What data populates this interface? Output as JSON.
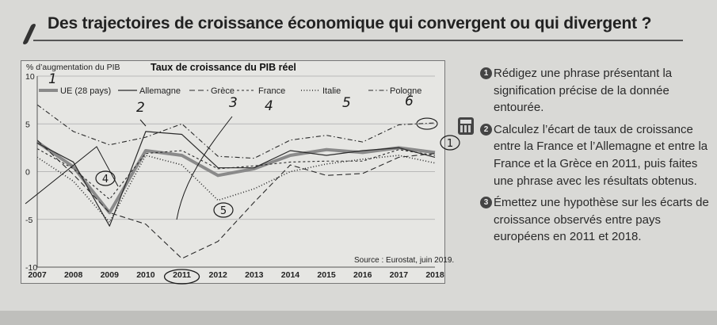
{
  "page": {
    "title": "Des trajectoires de croissance économique qui convergent ou qui divergent ?"
  },
  "questions": [
    {
      "num": "1",
      "text": "Rédigez une phrase présentant la signification précise de la donnée entourée."
    },
    {
      "num": "2",
      "text": "Calculez l’écart de taux de croissance entre la France et l’Allemagne et entre la France et la Grèce en 2011, puis faites une phrase avec les résultats obtenus."
    },
    {
      "num": "3",
      "text": "Émettez une hypothèse sur les écarts de croissance observés entre pays européens en 2011 et 2018."
    }
  ],
  "icons": {
    "calculator": "calculator-icon"
  },
  "handwriting": {
    "legend_numbers": [
      "1",
      "2",
      "3",
      "4",
      "5",
      "6"
    ],
    "circled_labels": [
      "1",
      "4",
      "5"
    ],
    "color": "#1a1a1a"
  },
  "chart_data": {
    "type": "line",
    "title": "Taux de croissance du PIB réel",
    "ylabel": "% d’augmentation du PIB",
    "source": "Source : Eurostat, juin 2019.",
    "x": [
      2007,
      2008,
      2009,
      2010,
      2011,
      2012,
      2013,
      2014,
      2015,
      2016,
      2017,
      2018
    ],
    "ylim": [
      -10,
      10
    ],
    "yticks": [
      -10,
      -5,
      0,
      5,
      10
    ],
    "grid": true,
    "legend_position": "top",
    "highlighted_x": 2011,
    "series": [
      {
        "name": "UE (28 pays)",
        "style": "thick-gray",
        "color": "#8a8a8a",
        "values": [
          3.1,
          0.5,
          -4.3,
          2.2,
          1.7,
          -0.4,
          0.3,
          1.7,
          2.3,
          2.0,
          2.5,
          2.0
        ]
      },
      {
        "name": "Allemagne",
        "style": "solid",
        "color": "#2b2b2b",
        "values": [
          3.0,
          1.0,
          -5.7,
          4.2,
          3.9,
          0.4,
          0.4,
          2.2,
          1.7,
          2.2,
          2.5,
          1.5
        ]
      },
      {
        "name": "Grèce",
        "style": "long-dash",
        "color": "#2b2b2b",
        "values": [
          3.3,
          -0.3,
          -4.3,
          -5.5,
          -9.1,
          -7.3,
          -3.2,
          0.7,
          -0.4,
          -0.2,
          1.5,
          1.9
        ]
      },
      {
        "name": "France",
        "style": "short-dash",
        "color": "#2b2b2b",
        "values": [
          2.4,
          0.3,
          -2.9,
          1.9,
          2.2,
          0.3,
          0.6,
          1.0,
          1.1,
          1.1,
          2.3,
          1.7
        ]
      },
      {
        "name": "Italie",
        "style": "dotted",
        "color": "#2b2b2b",
        "values": [
          1.5,
          -1.0,
          -5.3,
          1.7,
          0.7,
          -3.0,
          -1.8,
          0.0,
          0.8,
          1.3,
          1.7,
          0.9
        ]
      },
      {
        "name": "Pologne",
        "style": "dash-dot",
        "color": "#2b2b2b",
        "values": [
          7.0,
          4.2,
          2.8,
          3.6,
          5.0,
          1.6,
          1.4,
          3.3,
          3.8,
          3.1,
          4.9,
          5.1
        ]
      }
    ]
  }
}
